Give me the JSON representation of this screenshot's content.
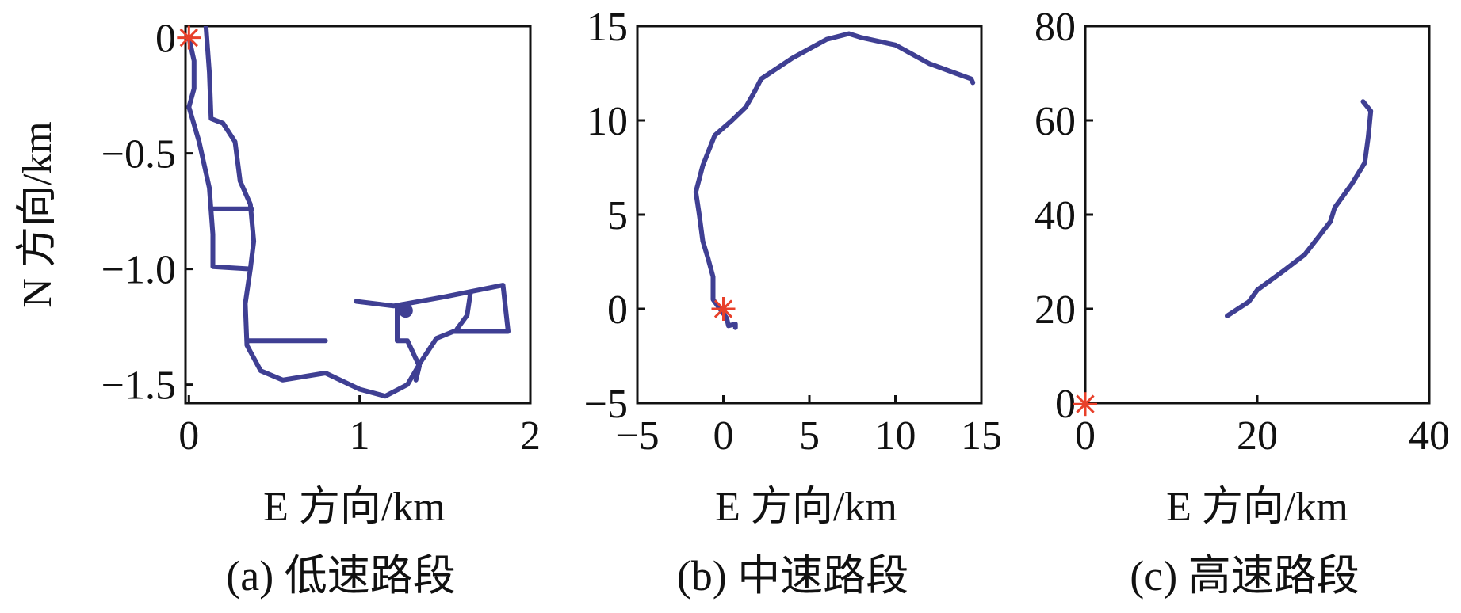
{
  "colors": {
    "path": "#3f3f93",
    "start": "#e8402a",
    "axis": "#111111"
  },
  "chart_data": [
    {
      "type": "line",
      "caption": "(a) 低速路段",
      "xlabel": "E 方向/km",
      "ylabel": "N 方向/km",
      "xlim": [
        -0.02,
        2.0
      ],
      "ylim": [
        -1.58,
        0.05
      ],
      "xticks": [
        0,
        1,
        2
      ],
      "yticks": [
        0,
        -0.5,
        -1.0,
        -1.5
      ],
      "xtick_labels": [
        "0",
        "1",
        "2"
      ],
      "ytick_labels": [
        "0",
        "−0.5",
        "−1.0",
        "−1.5"
      ],
      "start_marker": [
        0,
        0
      ],
      "dots": [
        [
          1.27,
          -1.18
        ]
      ],
      "series": [
        {
          "points": [
            [
              0.0,
              0.0
            ],
            [
              0.03,
              -0.1
            ],
            [
              0.03,
              -0.22
            ],
            [
              0.0,
              -0.3
            ],
            [
              0.06,
              -0.45
            ],
            [
              0.12,
              -0.65
            ],
            [
              0.14,
              -0.85
            ],
            [
              0.14,
              -0.99
            ],
            [
              0.36,
              -1.0
            ],
            [
              0.33,
              -1.15
            ],
            [
              0.34,
              -1.33
            ],
            [
              0.42,
              -1.44
            ],
            [
              0.55,
              -1.48
            ],
            [
              0.8,
              -1.45
            ],
            [
              1.0,
              -1.52
            ],
            [
              1.15,
              -1.55
            ],
            [
              1.28,
              -1.5
            ],
            [
              1.36,
              -1.4
            ],
            [
              1.45,
              -1.3
            ],
            [
              1.55,
              -1.27
            ],
            [
              1.87,
              -1.27
            ],
            [
              1.84,
              -1.07
            ],
            [
              1.5,
              -1.12
            ],
            [
              1.2,
              -1.16
            ],
            [
              0.98,
              -1.14
            ]
          ]
        },
        {
          "points": [
            [
              0.1,
              0.05
            ],
            [
              0.12,
              -0.15
            ],
            [
              0.13,
              -0.35
            ],
            [
              0.2,
              -0.37
            ],
            [
              0.27,
              -0.45
            ],
            [
              0.3,
              -0.62
            ],
            [
              0.36,
              -0.72
            ],
            [
              0.38,
              -0.88
            ],
            [
              0.36,
              -1.0
            ]
          ]
        },
        {
          "points": [
            [
              0.13,
              -0.74
            ],
            [
              0.37,
              -0.74
            ]
          ]
        },
        {
          "points": [
            [
              0.34,
              -1.31
            ],
            [
              0.8,
              -1.31
            ]
          ]
        },
        {
          "points": [
            [
              1.22,
              -1.16
            ],
            [
              1.22,
              -1.31
            ],
            [
              1.28,
              -1.31
            ],
            [
              1.35,
              -1.42
            ],
            [
              1.33,
              -1.48
            ]
          ]
        },
        {
          "points": [
            [
              1.65,
              -1.1
            ],
            [
              1.63,
              -1.2
            ],
            [
              1.57,
              -1.26
            ]
          ]
        }
      ]
    },
    {
      "type": "line",
      "caption": "(b) 中速路段",
      "xlabel": "E 方向/km",
      "ylabel": "",
      "xlim": [
        -5,
        15
      ],
      "ylim": [
        -5,
        15
      ],
      "xticks": [
        -5,
        0,
        5,
        10,
        15
      ],
      "yticks": [
        -5,
        0,
        5,
        10,
        15
      ],
      "xtick_labels": [
        "−5",
        "0",
        "5",
        "10",
        "15"
      ],
      "ytick_labels": [
        "−5",
        "0",
        "5",
        "10",
        "15"
      ],
      "start_marker": [
        0,
        0
      ],
      "dots": [],
      "series": [
        {
          "points": [
            [
              0.7,
              -1.0
            ],
            [
              0.7,
              -0.8
            ],
            [
              0.3,
              -0.9
            ],
            [
              0.2,
              -0.5
            ],
            [
              -0.6,
              0.5
            ],
            [
              -0.6,
              1.7
            ],
            [
              -0.9,
              2.7
            ],
            [
              -1.2,
              3.6
            ],
            [
              -1.4,
              5.0
            ],
            [
              -1.6,
              6.2
            ],
            [
              -1.2,
              7.6
            ],
            [
              -0.5,
              9.2
            ],
            [
              0.5,
              10.0
            ],
            [
              1.3,
              10.7
            ],
            [
              1.8,
              11.5
            ],
            [
              2.2,
              12.2
            ],
            [
              4.0,
              13.3
            ],
            [
              6.0,
              14.3
            ],
            [
              7.3,
              14.6
            ],
            [
              8.0,
              14.4
            ],
            [
              10.0,
              14.0
            ],
            [
              12.0,
              13.0
            ],
            [
              13.5,
              12.5
            ],
            [
              14.4,
              12.2
            ],
            [
              14.5,
              12.0
            ]
          ]
        }
      ]
    },
    {
      "type": "line",
      "caption": "(c) 高速路段",
      "xlabel": "E 方向/km",
      "ylabel": "",
      "xlim": [
        0,
        40
      ],
      "ylim": [
        0,
        80
      ],
      "xticks": [
        0,
        20,
        40
      ],
      "yticks": [
        0,
        20,
        40,
        60,
        80
      ],
      "xtick_labels": [
        "0",
        "20",
        "40"
      ],
      "ytick_labels": [
        "0",
        "20",
        "40",
        "60",
        "80"
      ],
      "start_marker": [
        0,
        -0.2
      ],
      "dots": [],
      "series": [
        {
          "points": [
            [
              16.5,
              18.5
            ],
            [
              19.0,
              21.5
            ],
            [
              20.0,
              24.0
            ],
            [
              23.0,
              28.0
            ],
            [
              25.5,
              31.5
            ],
            [
              27.0,
              35.0
            ],
            [
              28.5,
              38.5
            ],
            [
              29.0,
              41.5
            ],
            [
              31.0,
              46.5
            ],
            [
              32.5,
              51.0
            ],
            [
              32.9,
              56.5
            ],
            [
              33.2,
              62.0
            ],
            [
              32.3,
              64.0
            ]
          ]
        }
      ]
    }
  ]
}
